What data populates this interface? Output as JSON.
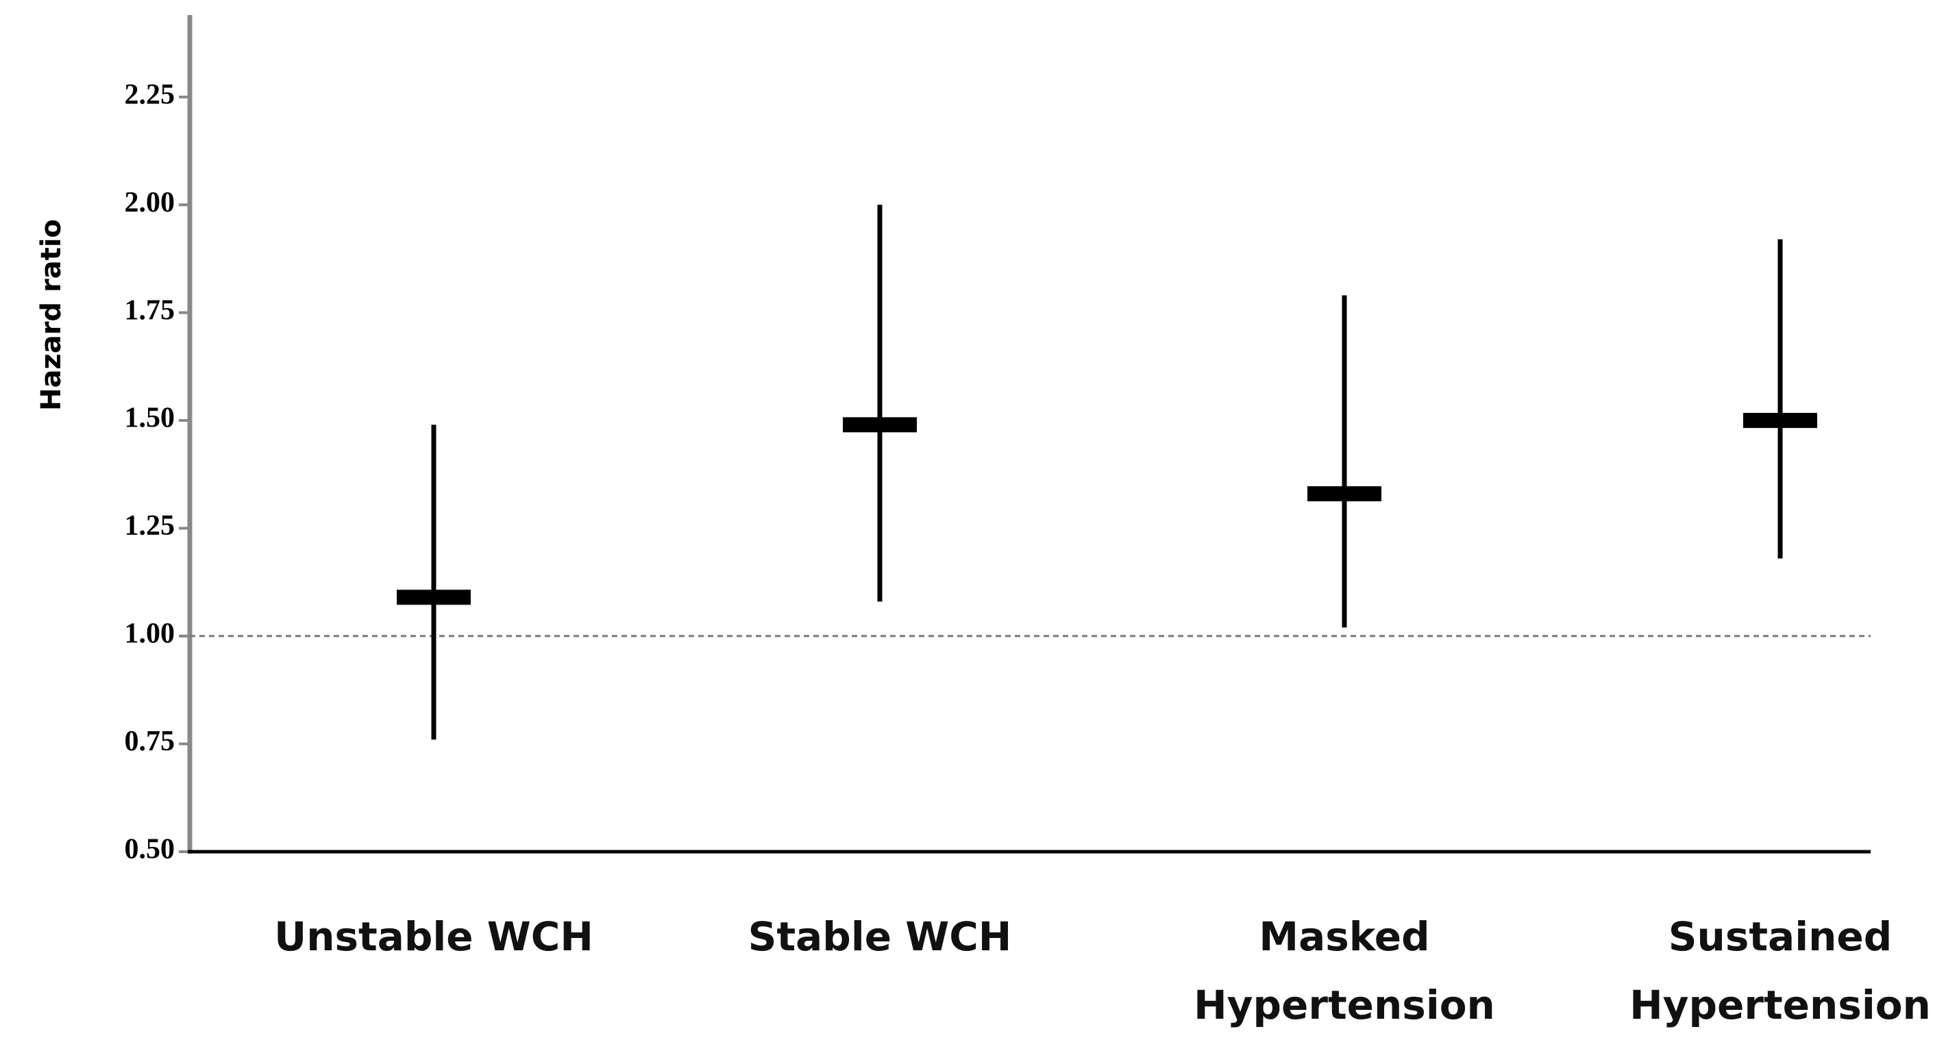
{
  "chart_data": {
    "type": "errorbar",
    "y_label": "Hazard ratio",
    "categories": [
      "Unstable WCH",
      "Stable WCH",
      "Masked\nHypertension",
      "Sustained\nHypertension"
    ],
    "values": [
      1.09,
      1.49,
      1.33,
      1.5
    ],
    "ci_low": [
      0.76,
      1.08,
      1.02,
      1.18
    ],
    "ci_high": [
      1.49,
      2.0,
      1.79,
      1.92
    ],
    "color": "#000000",
    "reference_line": 1,
    "ylim": [
      0.5,
      2.44
    ],
    "yticks": [
      {
        "value": 0.5,
        "label": "0.50"
      },
      0.75,
      {
        "value": 1,
        "label": "1.00"
      },
      1.25,
      {
        "value": 1.5,
        "label": "1.50"
      },
      1.75,
      {
        "value": 2,
        "label": "2.00"
      },
      2.25
    ]
  }
}
